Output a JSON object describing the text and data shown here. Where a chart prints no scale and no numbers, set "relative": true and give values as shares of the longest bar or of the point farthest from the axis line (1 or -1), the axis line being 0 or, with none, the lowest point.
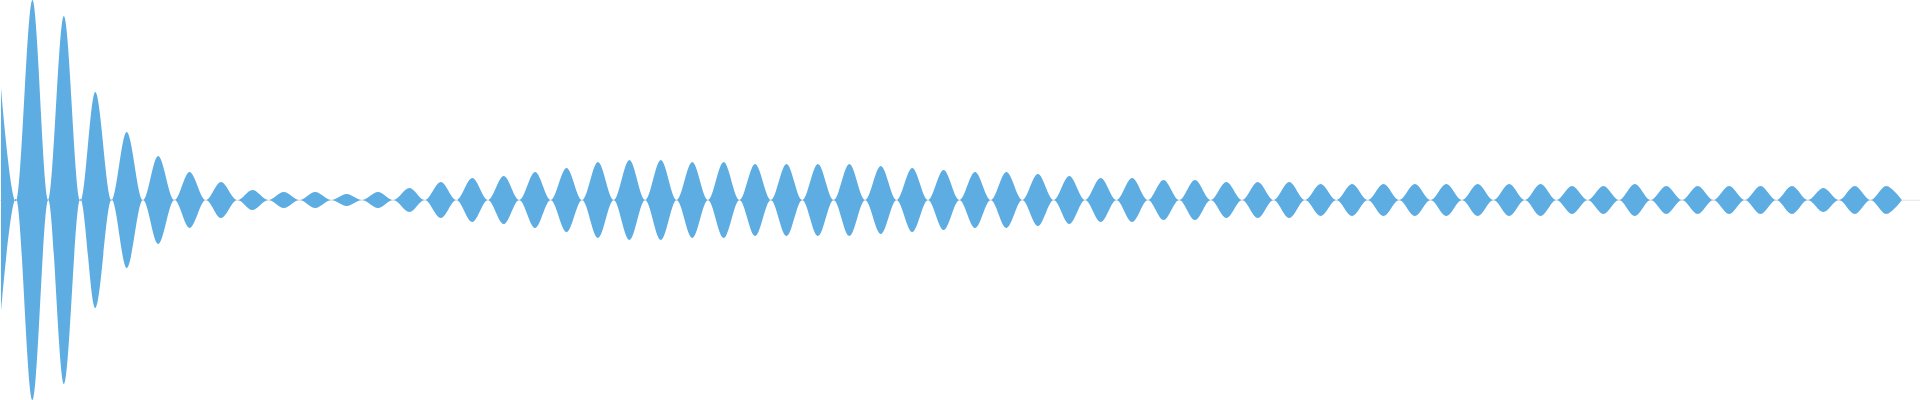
{
  "chart_data": {
    "type": "area",
    "relative": true,
    "categories": [
      null,
      null,
      null,
      null,
      null,
      null,
      null,
      null,
      null,
      null,
      null,
      null,
      null,
      null,
      null,
      null,
      null,
      null,
      null,
      null,
      null,
      null,
      null,
      null,
      null,
      null,
      null,
      null,
      null,
      null,
      null,
      null,
      null,
      null,
      null,
      null,
      null,
      null,
      null,
      null,
      null,
      null,
      null,
      null,
      null,
      null,
      null,
      null,
      null,
      null,
      null,
      null,
      null,
      null,
      null,
      null,
      null,
      null,
      null,
      null,
      null,
      null,
      null,
      null,
      null,
      null,
      null,
      null,
      null,
      null,
      null,
      null,
      null,
      null,
      null,
      null,
      null,
      null,
      null,
      null,
      null,
      null,
      null,
      null,
      null,
      null,
      null,
      null,
      null,
      null,
      null,
      null,
      null,
      null,
      null,
      null,
      null,
      null,
      null,
      null,
      null,
      null,
      null,
      null,
      null,
      null,
      null,
      null,
      null,
      null,
      null,
      null,
      null,
      null,
      null,
      null,
      null,
      null,
      null,
      null,
      null,
      null
    ],
    "series": [
      {
        "color": "#5dade2",
        "values": [
          0.56,
          0,
          1.0,
          0,
          0.92,
          0,
          0.54,
          0,
          0.34,
          0,
          0.22,
          0,
          0.14,
          0,
          0.09,
          0,
          0.05,
          0,
          0.04,
          0,
          0.04,
          0,
          0.03,
          0,
          0.04,
          0,
          0.06,
          0,
          0.09,
          0,
          0.11,
          0,
          0.12,
          0,
          0.14,
          0,
          0.16,
          0,
          0.19,
          0,
          0.2,
          0,
          0.2,
          0,
          0.19,
          0,
          0.19,
          0,
          0.18,
          0,
          0.18,
          0,
          0.18,
          0,
          0.18,
          0,
          0.17,
          0,
          0.16,
          0,
          0.15,
          0,
          0.14,
          0,
          0.14,
          0,
          0.13,
          0,
          0.12,
          0,
          0.11,
          0,
          0.11,
          0,
          0.1,
          0,
          0.1,
          0,
          0.09,
          0,
          0.09,
          0,
          0.09,
          0,
          0.08,
          0,
          0.08,
          0,
          0.08,
          0,
          0.08,
          0,
          0.08,
          0,
          0.08,
          0,
          0.08,
          0,
          0.08,
          0,
          0.07,
          0,
          0.07,
          0,
          0.08,
          0,
          0.07,
          0,
          0.07,
          0,
          0.07,
          0,
          0.07,
          0,
          0.07,
          0,
          0.06,
          0,
          0.07,
          0,
          0.07,
          0
        ]
      },
      {
        "color": "#5dade2",
        "values": [
          -0.56,
          0,
          -1.0,
          0,
          -0.92,
          0,
          -0.54,
          0,
          -0.34,
          0,
          -0.22,
          0,
          -0.14,
          0,
          -0.09,
          0,
          -0.05,
          0,
          -0.04,
          0,
          -0.04,
          0,
          -0.03,
          0,
          -0.04,
          0,
          -0.06,
          0,
          -0.09,
          0,
          -0.11,
          0,
          -0.12,
          0,
          -0.14,
          0,
          -0.16,
          0,
          -0.19,
          0,
          -0.2,
          0,
          -0.2,
          0,
          -0.19,
          0,
          -0.19,
          0,
          -0.18,
          0,
          -0.18,
          0,
          -0.18,
          0,
          -0.18,
          0,
          -0.17,
          0,
          -0.16,
          0,
          -0.15,
          0,
          -0.14,
          0,
          -0.14,
          0,
          -0.13,
          0,
          -0.12,
          0,
          -0.11,
          0,
          -0.11,
          0,
          -0.1,
          0,
          -0.1,
          0,
          -0.09,
          0,
          -0.09,
          0,
          -0.09,
          0,
          -0.08,
          0,
          -0.08,
          0,
          -0.08,
          0,
          -0.08,
          0,
          -0.08,
          0,
          -0.08,
          0,
          -0.08,
          0,
          -0.08,
          0,
          -0.07,
          0,
          -0.07,
          0,
          -0.08,
          0,
          -0.07,
          0,
          -0.07,
          0,
          -0.07,
          0,
          -0.07,
          0,
          -0.07,
          0,
          -0.06,
          0,
          -0.07,
          0,
          -0.07,
          0
        ]
      }
    ]
  }
}
